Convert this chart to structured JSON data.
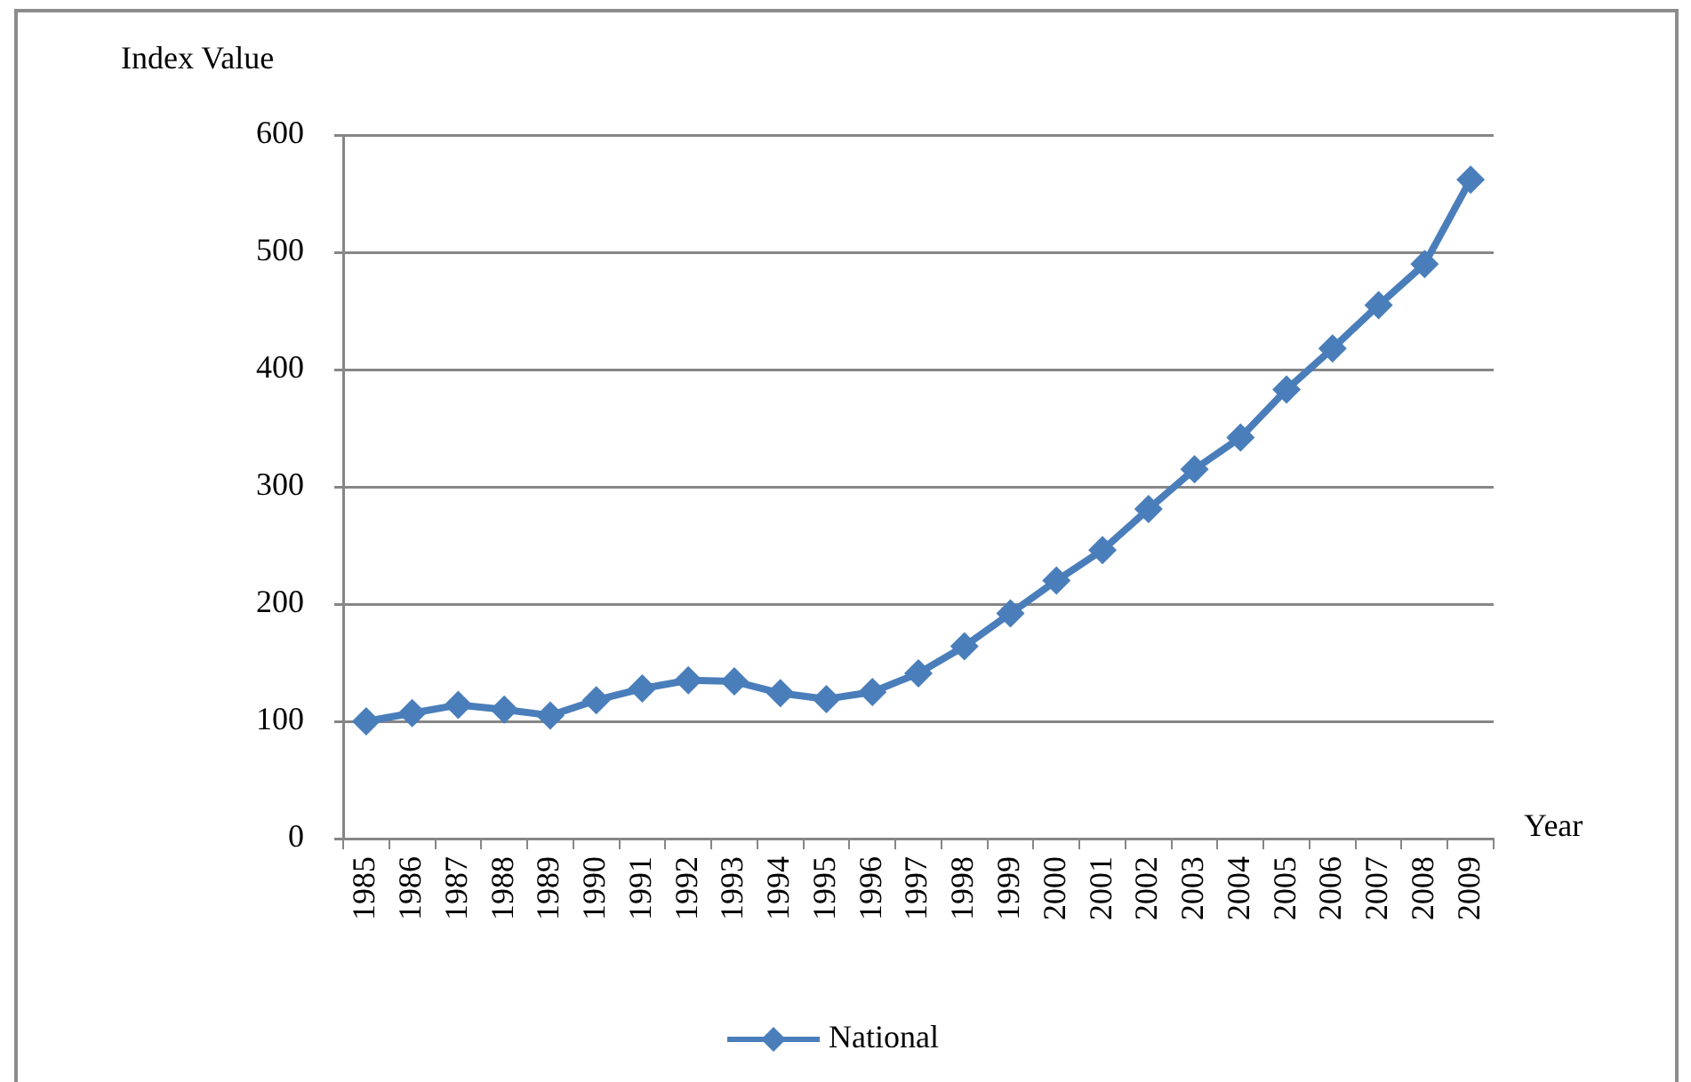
{
  "chart_data": {
    "type": "line",
    "xlabel": "Year",
    "ylabel": "Index Value",
    "categories": [
      "1985",
      "1986",
      "1987",
      "1988",
      "1989",
      "1990",
      "1991",
      "1992",
      "1993",
      "1994",
      "1995",
      "1996",
      "1997",
      "1998",
      "1999",
      "2000",
      "2001",
      "2002",
      "2003",
      "2004",
      "2005",
      "2006",
      "2007",
      "2008",
      "2009"
    ],
    "series": [
      {
        "name": "National",
        "color": "#4a7ebb",
        "values": [
          100,
          107,
          114,
          110,
          105,
          118,
          128,
          135,
          134,
          124,
          119,
          125,
          141,
          164,
          192,
          220,
          246,
          281,
          315,
          342,
          383,
          418,
          455,
          490,
          562
        ]
      }
    ],
    "ylim": [
      0,
      600
    ],
    "yticks": [
      0,
      100,
      200,
      300,
      400,
      500,
      600
    ],
    "grid": "y",
    "legend": "bottom",
    "marker": "diamond",
    "line_style": "solid"
  }
}
